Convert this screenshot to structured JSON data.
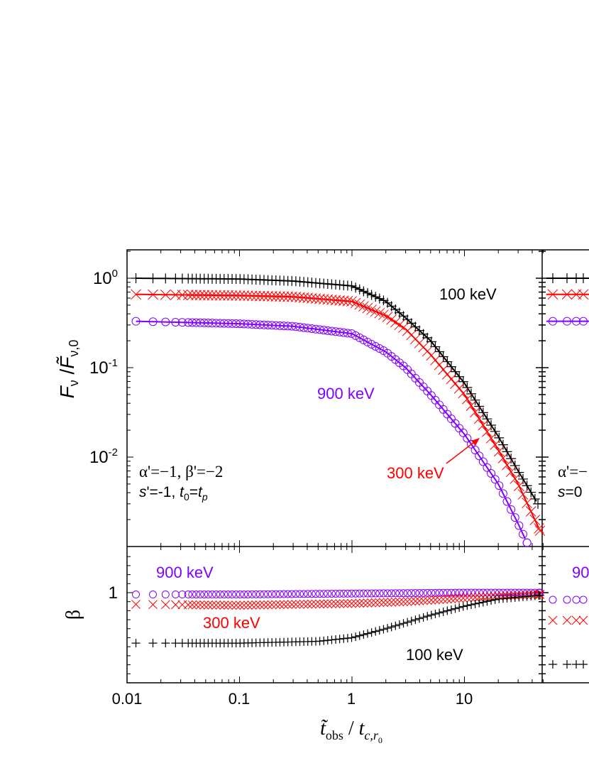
{
  "chart_data": [
    {
      "type": "line",
      "panel": "top-left",
      "ylabel": {
        "main": "F",
        "sub": "ν",
        "sep": " /",
        "main2": "F̃",
        "sub2": "ν,0"
      },
      "yscale": "log",
      "xscale": "log",
      "xlim": [
        0.01,
        50
      ],
      "ylim": [
        0.00105,
        2.08
      ],
      "yticks": [
        {
          "base": "10",
          "exp": "0"
        },
        {
          "base": "10",
          "exp": "-1"
        },
        {
          "base": "10",
          "exp": "-2"
        }
      ],
      "ytick_values": [
        1,
        0.1,
        0.01
      ],
      "colors": {
        "100 keV": "#000000",
        "300 keV": "#ff0000",
        "900 keV": "#8000ff"
      },
      "series": [
        {
          "name": "100 keV",
          "marker": "plus",
          "color": "#000000",
          "x": [
            0.012,
            0.1,
            0.3,
            1,
            2,
            3,
            5,
            10,
            20,
            30,
            45
          ],
          "y": [
            1.0,
            0.98,
            0.93,
            0.82,
            0.55,
            0.36,
            0.2,
            0.067,
            0.017,
            0.007,
            0.003
          ]
        },
        {
          "name": "300 keV",
          "marker": "cross",
          "color": "#ff0000",
          "x": [
            0.012,
            0.1,
            0.3,
            1,
            2,
            3,
            5,
            10,
            20,
            30,
            47
          ],
          "y": [
            0.66,
            0.64,
            0.62,
            0.55,
            0.38,
            0.27,
            0.14,
            0.05,
            0.012,
            0.005,
            0.0015
          ]
        },
        {
          "name": "900 keV",
          "marker": "circle",
          "color": "#8000ff",
          "x": [
            0.012,
            0.1,
            0.3,
            1,
            2,
            3,
            5,
            10,
            20,
            30,
            36
          ],
          "y": [
            0.33,
            0.31,
            0.29,
            0.24,
            0.15,
            0.1,
            0.05,
            0.018,
            0.005,
            0.0018,
            0.0011
          ]
        }
      ],
      "labels": {
        "l100": "100 keV",
        "l300": "300 keV",
        "l900": "900 keV"
      },
      "annotation": {
        "line1": "α'=−1, β'=−2",
        "s": "s",
        "line2_a": "'=-1, ",
        "t": "t",
        "sub0": "0",
        "eq": "=",
        "t2": "t",
        "subp": "p"
      }
    },
    {
      "type": "scatter",
      "panel": "bottom-left",
      "ylabel": "β",
      "xscale": "log",
      "xlim": [
        0.01,
        50
      ],
      "ylim": [
        0,
        1.5
      ],
      "yticks": [
        "1"
      ],
      "xticks": [
        "0.01",
        "0.1",
        "1",
        "10"
      ],
      "xtick_values": [
        0.01,
        0.1,
        1,
        10
      ],
      "xlabel": {
        "t": "t̃",
        "sub": "obs",
        "sep": " / ",
        "t2": "t",
        "sub2": "c,r",
        "sub3": "0"
      },
      "series": [
        {
          "name": "900 keV",
          "marker": "circle",
          "color": "#8000ff",
          "x": [
            0.012,
            0.1,
            1,
            10,
            47
          ],
          "y": [
            0.98,
            0.98,
            0.99,
            1.0,
            1.0
          ]
        },
        {
          "name": "300 keV",
          "marker": "cross",
          "color": "#ff0000",
          "x": [
            0.012,
            0.1,
            1,
            3,
            10,
            47
          ],
          "y": [
            0.87,
            0.86,
            0.88,
            0.9,
            0.94,
            0.98
          ]
        },
        {
          "name": "100 keV",
          "marker": "plus",
          "color": "#000000",
          "x": [
            0.012,
            0.1,
            0.5,
            1,
            2,
            5,
            10,
            20,
            47
          ],
          "y": [
            0.44,
            0.44,
            0.46,
            0.5,
            0.6,
            0.75,
            0.85,
            0.93,
            0.97
          ]
        }
      ],
      "labels": {
        "l900": "900 keV",
        "l300": "300 keV",
        "l100": "100 keV"
      }
    },
    {
      "type": "line",
      "panel": "right (cropped)",
      "partial_texts": {
        "alpha": "α'=−",
        "s": "s",
        "s_rest": "=0",
        "l900": "90"
      }
    }
  ]
}
